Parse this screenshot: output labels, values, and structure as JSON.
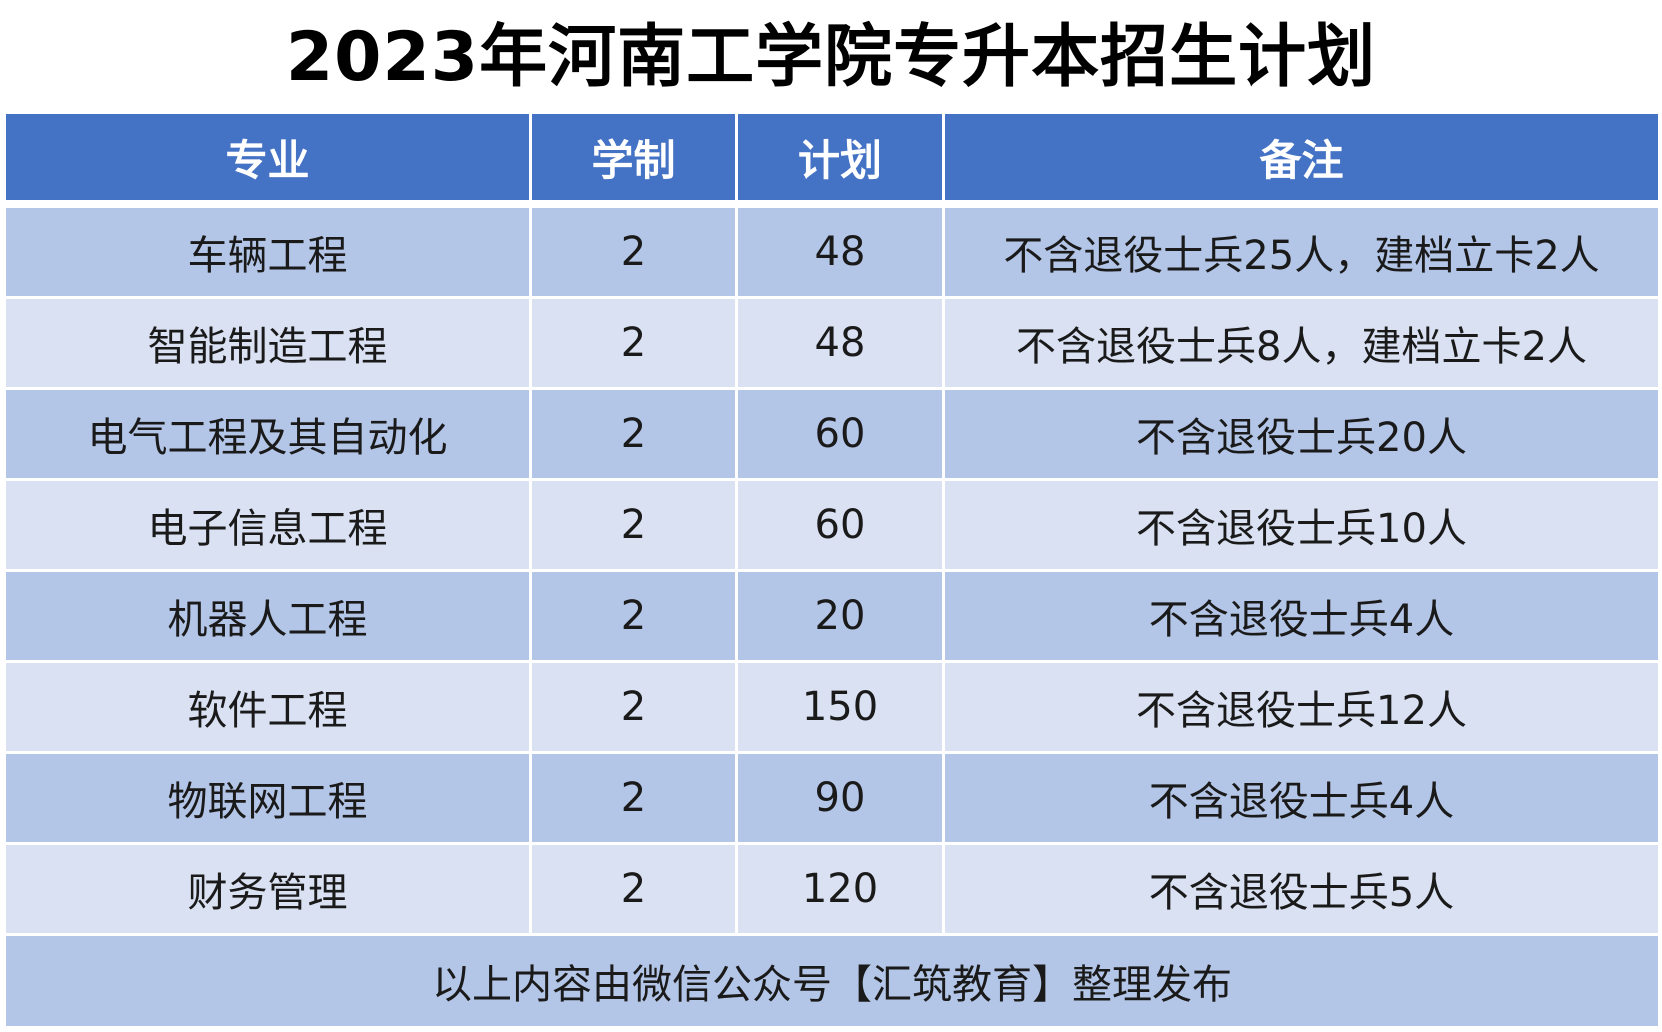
{
  "title": "2023年河南工学院专升本招生计划",
  "headers": [
    "专业",
    "学制",
    "计划",
    "备注"
  ],
  "rows": [
    {
      "major": "车辆工程",
      "years": "2",
      "plan": "48",
      "note": "不含退役士兵25人，建档立卡2人"
    },
    {
      "major": "智能制造工程",
      "years": "2",
      "plan": "48",
      "note": "不含退役士兵8人，建档立卡2人"
    },
    {
      "major": "电气工程及其自动化",
      "years": "2",
      "plan": "60",
      "note": "不含退役士兵20人"
    },
    {
      "major": "电子信息工程",
      "years": "2",
      "plan": "60",
      "note": "不含退役士兵10人"
    },
    {
      "major": "机器人工程",
      "years": "2",
      "plan": "20",
      "note": "不含退役士兵4人"
    },
    {
      "major": "软件工程",
      "years": "2",
      "plan": "150",
      "note": "不含退役士兵12人"
    },
    {
      "major": "物联网工程",
      "years": "2",
      "plan": "90",
      "note": "不含退役士兵4人"
    },
    {
      "major": "财务管理",
      "years": "2",
      "plan": "120",
      "note": "不含退役士兵5人"
    }
  ],
  "footer": "以上内容由微信公众号【汇筑教育】整理发布",
  "colors": {
    "header_bg": "#4472c4",
    "row_dark": "#b4c6e7",
    "row_light": "#d9e1f2"
  }
}
